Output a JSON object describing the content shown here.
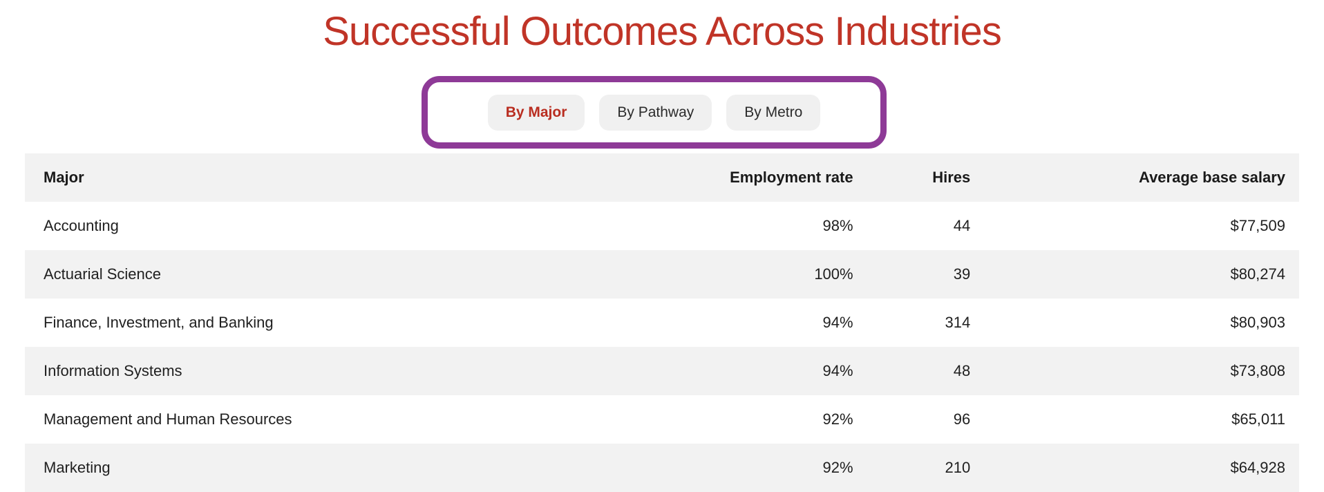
{
  "page": {
    "title": "Successful Outcomes Across Industries"
  },
  "colors": {
    "title_red": "#c03427",
    "active_tab_red": "#b92d20",
    "annotation_purple": "#8e3a97",
    "pill_bg": "#f0f0f0",
    "row_alt_bg": "#f2f2f2",
    "text": "#1f1f1f"
  },
  "tabs": {
    "items": [
      {
        "name": "by-major",
        "label": "By Major",
        "active": true
      },
      {
        "name": "by-pathway",
        "label": "By Pathway",
        "active": false
      },
      {
        "name": "by-metro",
        "label": "By Metro",
        "active": false
      }
    ]
  },
  "table": {
    "columns": [
      "Major",
      "Employment rate",
      "Hires",
      "Average base salary"
    ],
    "rows": [
      {
        "major": "Accounting",
        "employment_rate": "98%",
        "hires": "44",
        "average_base_salary": "$77,509"
      },
      {
        "major": "Actuarial Science",
        "employment_rate": "100%",
        "hires": "39",
        "average_base_salary": "$80,274"
      },
      {
        "major": "Finance, Investment, and Banking",
        "employment_rate": "94%",
        "hires": "314",
        "average_base_salary": "$80,903"
      },
      {
        "major": "Information Systems",
        "employment_rate": "94%",
        "hires": "48",
        "average_base_salary": "$73,808"
      },
      {
        "major": "Management and Human Resources",
        "employment_rate": "92%",
        "hires": "96",
        "average_base_salary": "$65,011"
      },
      {
        "major": "Marketing",
        "employment_rate": "92%",
        "hires": "210",
        "average_base_salary": "$64,928"
      }
    ]
  }
}
